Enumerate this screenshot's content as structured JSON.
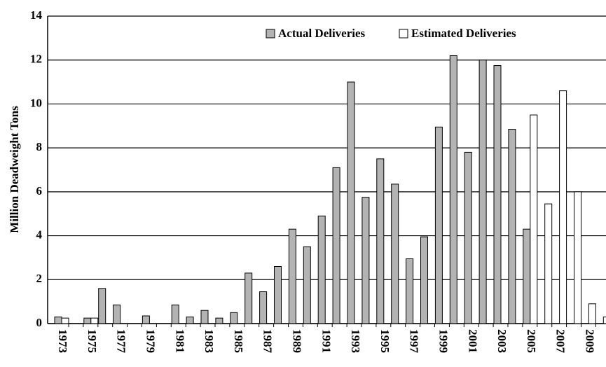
{
  "chart_data": {
    "type": "bar",
    "y_label": "Million Deadweight Tons",
    "categories": [
      "1973",
      null,
      "1975",
      null,
      "1977",
      null,
      "1979",
      null,
      "1981",
      null,
      "1983",
      null,
      "1985",
      null,
      "1987",
      null,
      "1989",
      null,
      "1991",
      null,
      "1993",
      null,
      "1995",
      null,
      "1997",
      null,
      "1999",
      null,
      "2001",
      null,
      "2003",
      null,
      "2005",
      null,
      "2007",
      null,
      "2009",
      null
    ],
    "series": [
      {
        "name": "Actual Deliveries",
        "color": "#b3b3b3",
        "values": [
          0.3,
          null,
          0.25,
          1.6,
          0.85,
          null,
          0.35,
          null,
          0.85,
          0.3,
          0.6,
          0.25,
          0.5,
          2.3,
          1.45,
          2.6,
          4.3,
          3.5,
          4.9,
          7.1,
          11.0,
          5.75,
          7.5,
          6.35,
          2.95,
          3.95,
          8.95,
          12.2,
          7.8,
          12.0,
          11.75,
          8.85,
          4.3,
          null,
          null,
          null,
          null,
          null
        ]
      },
      {
        "name": "Estimated Deliveries",
        "color": "#ffffff",
        "values": [
          0.25,
          null,
          0.25,
          null,
          null,
          null,
          null,
          null,
          null,
          null,
          null,
          null,
          null,
          null,
          null,
          null,
          null,
          null,
          null,
          null,
          null,
          null,
          null,
          null,
          null,
          null,
          null,
          null,
          null,
          null,
          null,
          null,
          9.5,
          5.45,
          10.6,
          6.0,
          0.9,
          0.3
        ]
      }
    ],
    "ylim": [
      0,
      14
    ],
    "yticks": [
      0,
      2,
      4,
      6,
      8,
      10,
      12,
      14
    ],
    "grid": true,
    "legend": "top-right"
  }
}
